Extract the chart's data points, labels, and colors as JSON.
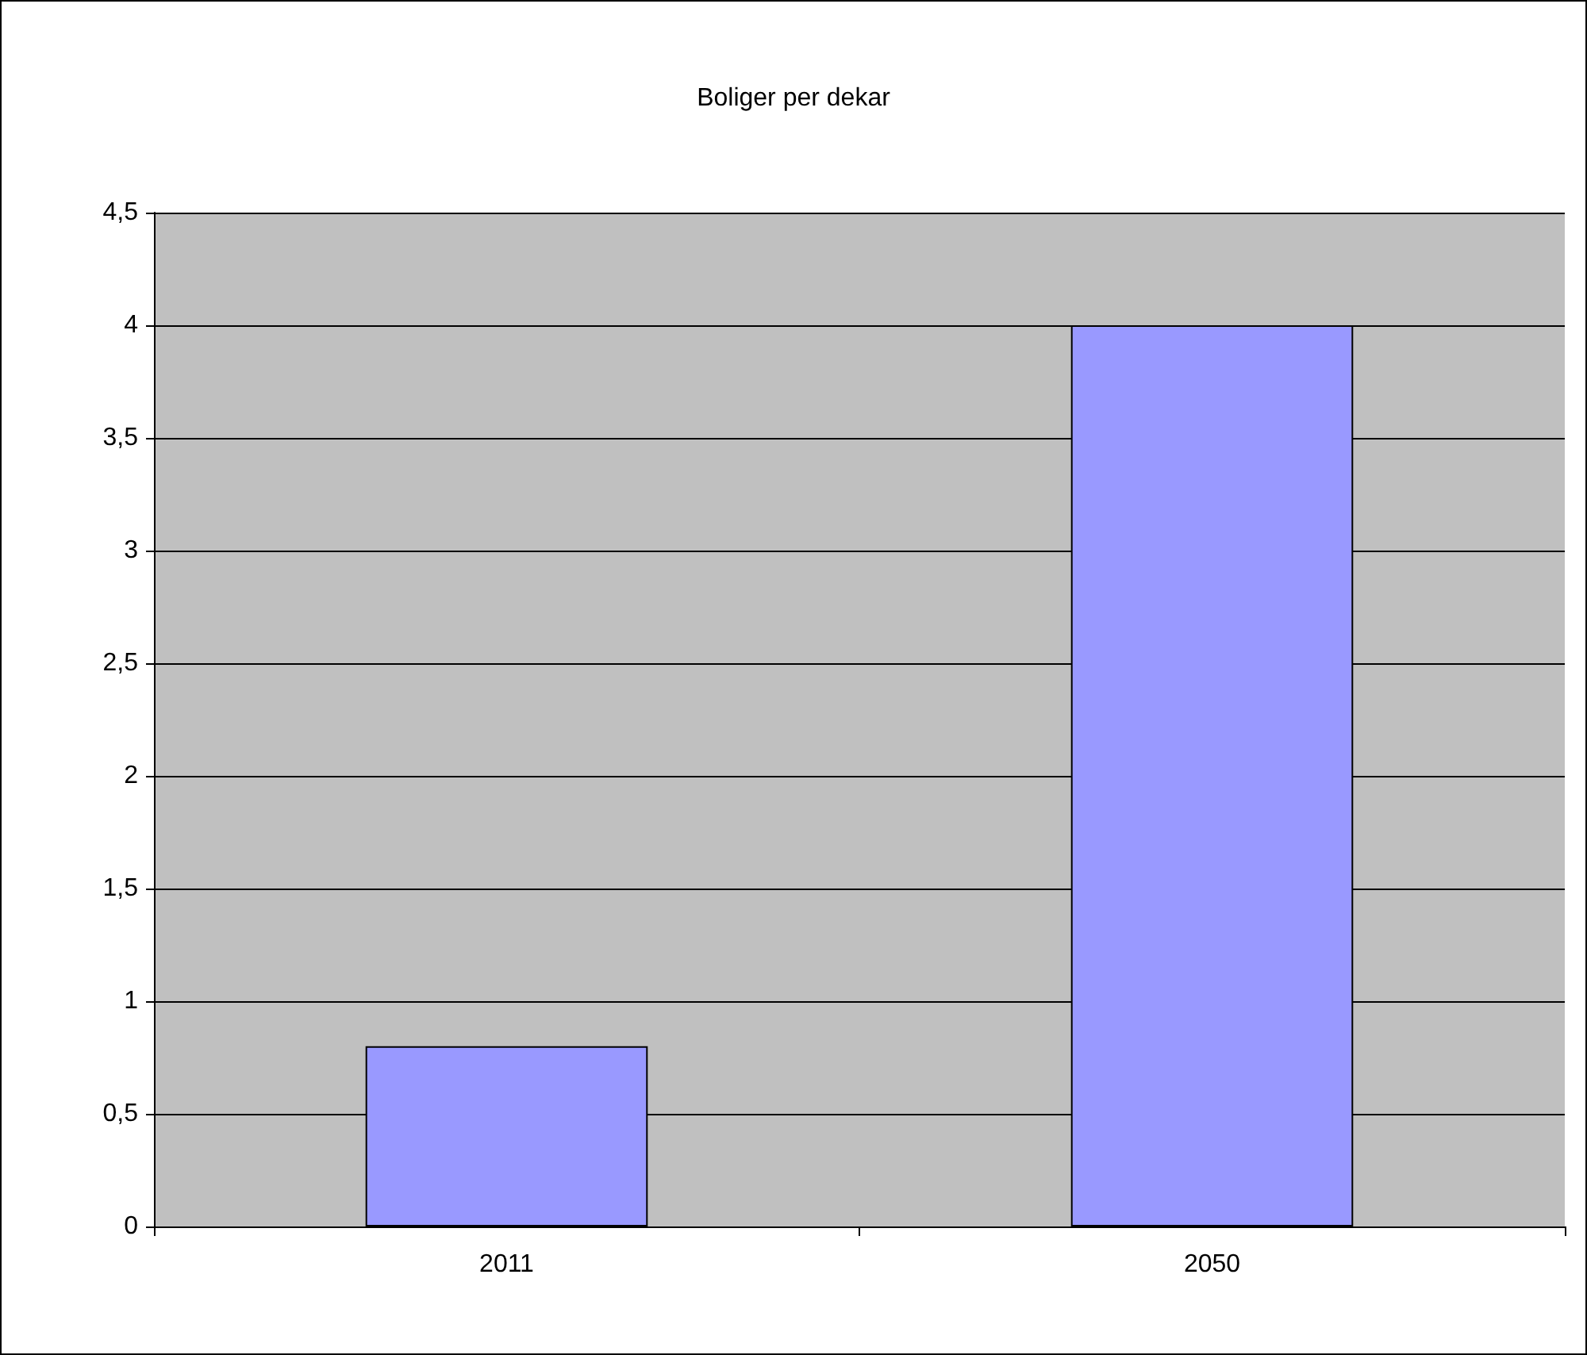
{
  "chart_data": {
    "type": "bar",
    "title": "Boliger per dekar",
    "categories": [
      "2011",
      "2050"
    ],
    "values": [
      0.8,
      4
    ],
    "color": "#9999ff",
    "ylim": [
      0,
      4.5
    ],
    "yticks": [
      0,
      {
        "value": 0.5,
        "label": "0,5"
      },
      1,
      {
        "value": 1.5,
        "label": "1,5"
      },
      2,
      {
        "value": 2.5,
        "label": "2,5"
      },
      3,
      {
        "value": 3.5,
        "label": "3,5"
      },
      4,
      {
        "value": 4.5,
        "label": "4,5"
      }
    ],
    "grid": "y"
  }
}
